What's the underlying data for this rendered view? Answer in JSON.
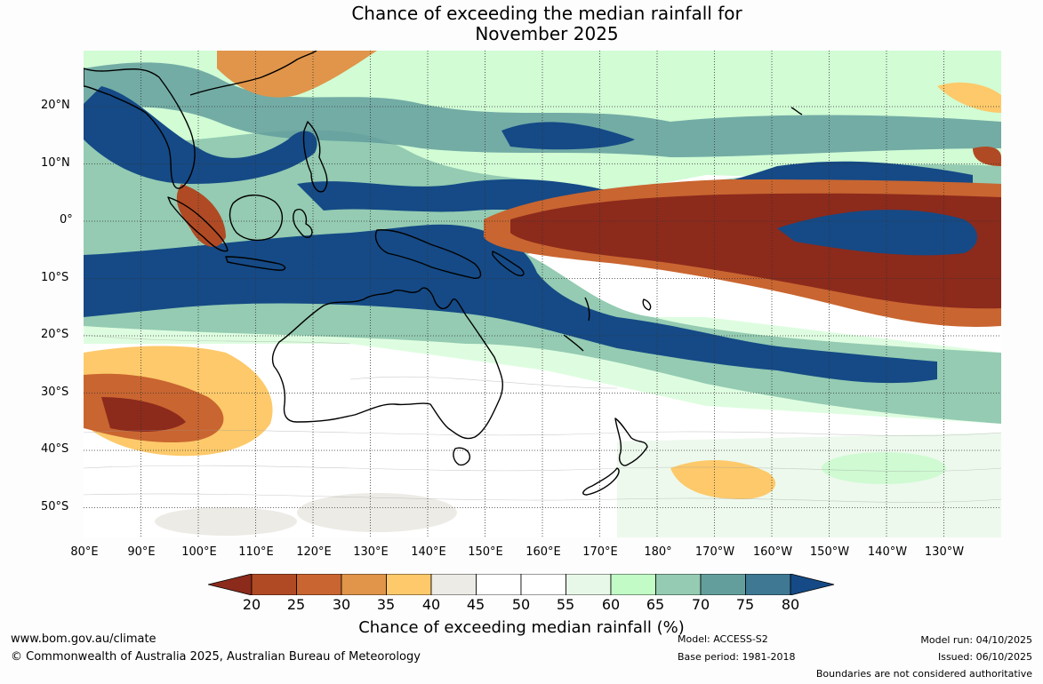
{
  "title": {
    "line1": "Chance of exceeding the median rainfall for",
    "line2": "November 2025"
  },
  "map": {
    "lat_labels": [
      "20°N",
      "10°N",
      "0°",
      "10°S",
      "20°S",
      "30°S",
      "40°S",
      "50°S"
    ],
    "lon_labels": [
      "80°E",
      "90°E",
      "100°E",
      "110°E",
      "120°E",
      "130°E",
      "140°E",
      "150°E",
      "160°E",
      "170°E",
      "180°",
      "170°W",
      "160°W",
      "150°W",
      "140°W",
      "130°W"
    ],
    "coastline_color": "#000000"
  },
  "colorbar": {
    "ticks": [
      "20",
      "25",
      "30",
      "35",
      "40",
      "45",
      "50",
      "55",
      "60",
      "65",
      "70",
      "75",
      "80"
    ],
    "colors": [
      "#8c2a1c",
      "#b04a24",
      "#c96530",
      "#e0954a",
      "#fdc96a",
      "#ecebe6",
      "#ffffff",
      "#ffffff",
      "#e8f8e8",
      "#c2fbc6",
      "#94cbb2",
      "#639e9c",
      "#3f7893",
      "#154a86"
    ],
    "title": "Chance of exceeding median rainfall (%)"
  },
  "footer": {
    "website": "www.bom.gov.au/climate",
    "copyright": "© Commonwealth of Australia 2025, Australian Bureau of Meteorology",
    "model": "Model: ACCESS-S2",
    "base_period": "Base period: 1981-2018",
    "model_run": "Model run: 04/10/2025",
    "issued": "Issued: 06/10/2025",
    "disclaimer": "Boundaries are not considered authoritative"
  }
}
